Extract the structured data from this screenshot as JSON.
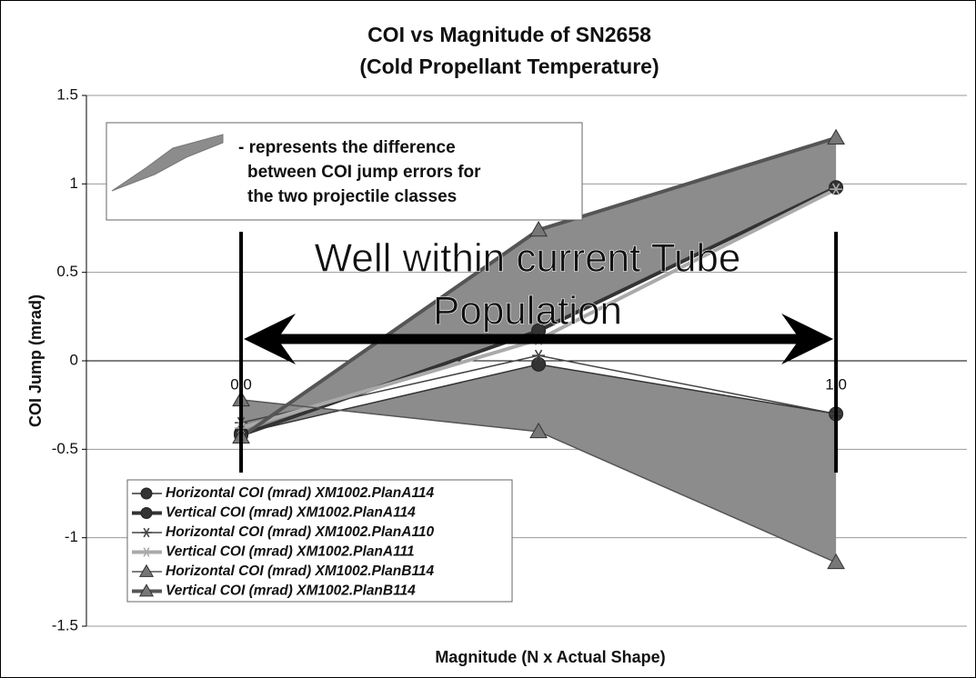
{
  "chart_data": {
    "type": "line",
    "title": [
      "COI vs Magnitude of SN2658",
      "(Cold Propellant Temperature)"
    ],
    "x_label": "Magnitude (N x Actual Shape)",
    "y_label": "COI Jump (mrad)",
    "x": [
      0,
      0.5,
      1
    ],
    "xlim": [
      -0.26,
      1.22
    ],
    "xticks": [
      {
        "value": 0,
        "label": "0.0"
      },
      0.5,
      {
        "value": 1,
        "label": "1.0"
      }
    ],
    "ylim": [
      -1.5,
      1.5
    ],
    "yticks": [
      1.5,
      1,
      0.5,
      0,
      -0.5,
      -1,
      -1.5
    ],
    "grid": true,
    "series": [
      {
        "name": "Horizontal COI (mrad) XM1002.PlanA114",
        "color": "#333333",
        "marker": "circle",
        "width": 1.5,
        "values": [
          -0.41,
          -0.02,
          -0.3
        ]
      },
      {
        "name": "Vertical COI (mrad) XM1002.PlanA114",
        "color": "#333333",
        "marker": "circle",
        "width": 4,
        "values": [
          -0.42,
          0.17,
          0.98
        ]
      },
      {
        "name": "Horizontal COI (mrad) XM1002.PlanA110",
        "color": "#444444",
        "marker": "star",
        "width": 1.5,
        "values": [
          -0.35,
          0.03,
          -0.3
        ]
      },
      {
        "name": "Vertical COI (mrad) XM1002.PlanA111",
        "color": "#aaaaaa",
        "marker": "star",
        "width": 4,
        "values": [
          -0.38,
          0.12,
          0.97
        ]
      },
      {
        "name": "Horizontal COI (mrad) XM1002.PlanB114",
        "color": "#555555",
        "marker": "triangle",
        "width": 1.5,
        "values": [
          -0.22,
          -0.4,
          -1.14
        ]
      },
      {
        "name": "Vertical COI (mrad) XM1002.PlanB114",
        "color": "#555555",
        "marker": "triangle",
        "width": 4,
        "values": [
          -0.43,
          0.74,
          1.26
        ]
      }
    ],
    "bands": [
      [
        0,
        4
      ],
      [
        1,
        5
      ]
    ],
    "band_color": "#8c8c8c",
    "annotations": {
      "key": [
        "- represents the difference",
        "between COI jump errors for",
        "the two projectile classes"
      ],
      "range": [
        "Well within current Tube",
        "Population"
      ]
    }
  }
}
